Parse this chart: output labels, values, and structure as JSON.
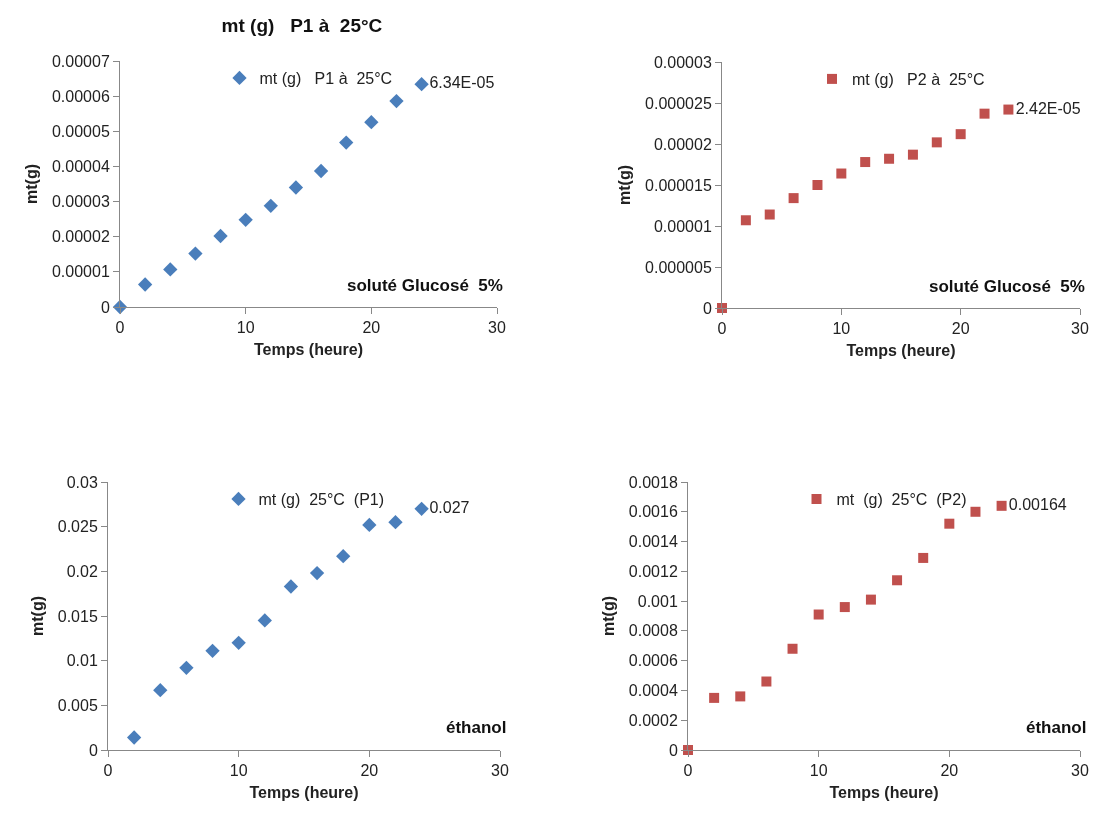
{
  "chart_data": [
    {
      "type": "scatter",
      "title": "mt (g)   P1 à  25°C",
      "xlabel": "Temps (heure)",
      "ylabel": "mt(g)",
      "x": [
        0,
        2,
        4,
        6,
        8,
        10,
        12,
        14,
        16,
        18,
        20,
        22,
        24
      ],
      "series": [
        {
          "name": "mt (g)   P1 à  25°C",
          "color": "#4a7ebb",
          "values": [
            0,
            6.4e-06,
            1.07e-05,
            1.52e-05,
            2.02e-05,
            2.48e-05,
            2.88e-05,
            3.4e-05,
            3.87e-05,
            4.68e-05,
            5.26e-05,
            5.86e-05,
            6.34e-05
          ],
          "value_labels": [
            null,
            null,
            null,
            null,
            null,
            null,
            null,
            null,
            null,
            null,
            null,
            null,
            "6.34E-05"
          ]
        }
      ],
      "marker": "diamond",
      "legend": "top",
      "xlim": [
        0,
        30
      ],
      "xticks": [
        0,
        10,
        20,
        30
      ],
      "ylim": [
        0,
        7e-05
      ],
      "yticks": [
        0,
        {
          "value": 1e-05,
          "label": "0.00001"
        },
        {
          "value": 2e-05,
          "label": "0.00002"
        },
        {
          "value": 3e-05,
          "label": "0.00003"
        },
        {
          "value": 4e-05,
          "label": "0.00004"
        },
        {
          "value": 5e-05,
          "label": "0.00005"
        },
        {
          "value": 6e-05,
          "label": "0.00006"
        },
        {
          "value": 7e-05,
          "label": "0.00007"
        }
      ],
      "annotations": [
        "soluté Glucosé  5%"
      ]
    },
    {
      "type": "scatter",
      "xlabel": "Temps (heure)",
      "ylabel": "mt(g)",
      "x": [
        0,
        2,
        4,
        6,
        8,
        10,
        12,
        14,
        16,
        18,
        20,
        22,
        24
      ],
      "series": [
        {
          "name": "mt (g)   P2 à  25°C",
          "color": "#c0504d",
          "values": [
            0,
            1.07e-05,
            1.14e-05,
            1.34e-05,
            1.5e-05,
            1.64e-05,
            1.78e-05,
            1.82e-05,
            1.87e-05,
            2.02e-05,
            2.12e-05,
            2.37e-05,
            2.42e-05
          ],
          "value_labels": [
            null,
            null,
            null,
            null,
            null,
            null,
            null,
            null,
            null,
            null,
            null,
            null,
            "2.42E-05"
          ]
        }
      ],
      "marker": "square",
      "legend": "top",
      "xlim": [
        0,
        30
      ],
      "xticks": [
        0,
        10,
        20,
        30
      ],
      "ylim": [
        0,
        3e-05
      ],
      "yticks": [
        0,
        {
          "value": 5e-06,
          "label": "0.000005"
        },
        {
          "value": 1e-05,
          "label": "0.00001"
        },
        {
          "value": 1.5e-05,
          "label": "0.000015"
        },
        {
          "value": 2e-05,
          "label": "0.00002"
        },
        {
          "value": 2.5e-05,
          "label": "0.000025"
        },
        {
          "value": 3e-05,
          "label": "0.00003"
        }
      ],
      "annotations": [
        "soluté Glucosé  5%"
      ]
    },
    {
      "type": "scatter",
      "xlabel": "Temps (heure)",
      "ylabel": "mt(g)",
      "x": [
        2,
        4,
        6,
        8,
        10,
        12,
        14,
        16,
        18,
        20,
        22,
        24
      ],
      "series": [
        {
          "name": "mt (g)  25°C  (P1)",
          "color": "#4a7ebb",
          "values": [
            0.0014,
            0.0067,
            0.0092,
            0.0111,
            0.012,
            0.0145,
            0.0183,
            0.0198,
            0.0217,
            0.0252,
            0.0255,
            0.027
          ],
          "value_labels": [
            null,
            null,
            null,
            null,
            null,
            null,
            null,
            null,
            null,
            null,
            null,
            "0.027"
          ]
        }
      ],
      "marker": "diamond",
      "legend": "top",
      "xlim": [
        0,
        30
      ],
      "xticks": [
        0,
        10,
        20,
        30
      ],
      "ylim": [
        0,
        0.03
      ],
      "yticks": [
        0,
        0.005,
        0.01,
        0.015,
        0.02,
        0.025,
        0.03
      ],
      "annotations": [
        "éthanol"
      ]
    },
    {
      "type": "scatter",
      "xlabel": "Temps (heure)",
      "ylabel": "mt(g)",
      "x": [
        0,
        2,
        4,
        6,
        8,
        10,
        12,
        14,
        16,
        18,
        20,
        22,
        24
      ],
      "series": [
        {
          "name": "mt  (g)  25°C  (P2)",
          "color": "#c0504d",
          "values": [
            0,
            0.00035,
            0.00036,
            0.00046,
            0.00068,
            0.00091,
            0.00096,
            0.00101,
            0.00114,
            0.00129,
            0.00152,
            0.0016,
            0.00164
          ],
          "value_labels": [
            null,
            null,
            null,
            null,
            null,
            null,
            null,
            null,
            null,
            null,
            null,
            null,
            "0.00164"
          ]
        }
      ],
      "marker": "square",
      "legend": "top",
      "xlim": [
        0,
        30
      ],
      "xticks": [
        0,
        10,
        20,
        30
      ],
      "ylim": [
        0,
        0.0018
      ],
      "yticks": [
        0,
        0.0002,
        0.0004,
        0.0006,
        0.0008,
        0.001,
        0.0012,
        0.0014,
        0.0016,
        0.0018
      ],
      "annotations": [
        "éthanol"
      ]
    }
  ]
}
